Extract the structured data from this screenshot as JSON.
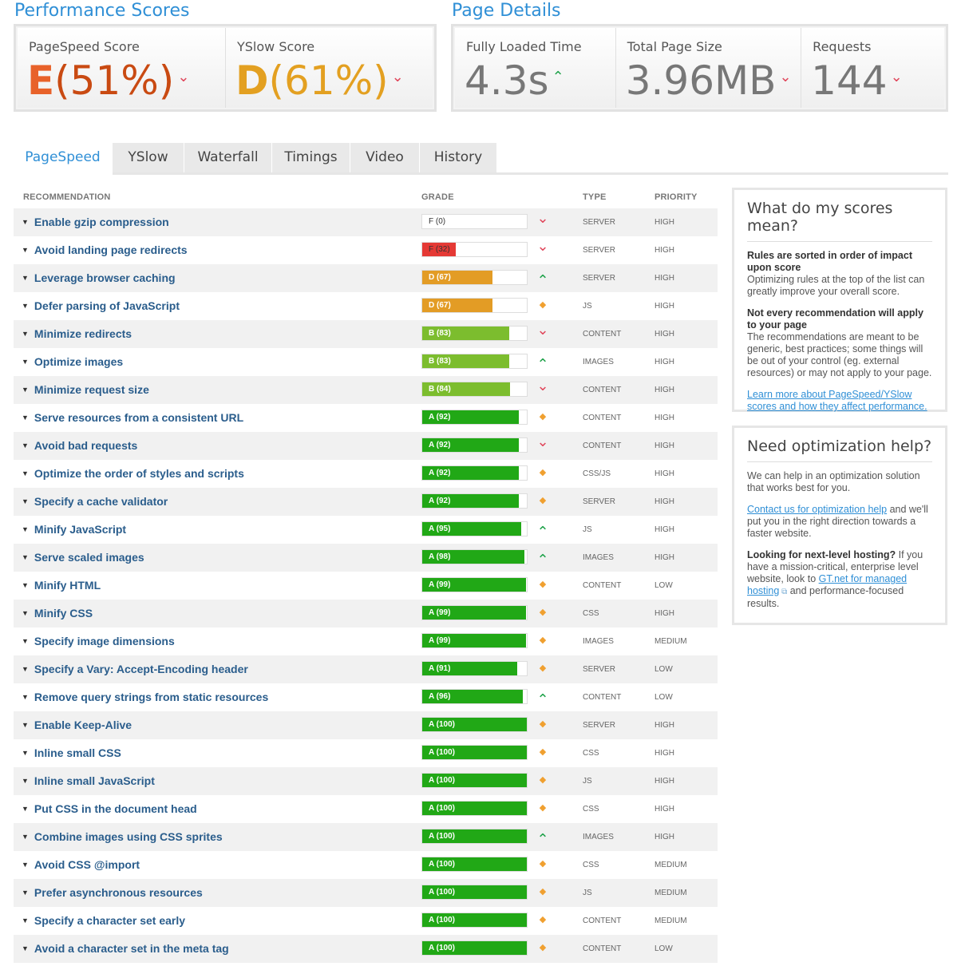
{
  "scores": {
    "title": "Performance Scores",
    "pagespeed": {
      "label": "PageSpeed Score",
      "grade": "E",
      "pct": "(51%)",
      "color": "#c94a12"
    },
    "yslow": {
      "label": "YSlow Score",
      "grade": "D",
      "pct": "(61%)",
      "color": "#e3a021"
    }
  },
  "details": {
    "title": "Page Details",
    "loaded": {
      "label": "Fully Loaded Time",
      "value": "4.3s",
      "trend": "up"
    },
    "size": {
      "label": "Total Page Size",
      "value": "3.96MB",
      "trend": "down"
    },
    "requests": {
      "label": "Requests",
      "value": "144",
      "trend": "down"
    }
  },
  "tabs": [
    "PageSpeed",
    "YSlow",
    "Waterfall",
    "Timings",
    "Video",
    "History"
  ],
  "active_tab": "PageSpeed",
  "table": {
    "headers": {
      "rec": "RECOMMENDATION",
      "grade": "GRADE",
      "type": "TYPE",
      "priority": "PRIORITY"
    },
    "rows": [
      {
        "name": "Enable gzip compression",
        "grade": "F (0)",
        "score": 0,
        "trend": "down",
        "type": "SERVER",
        "priority": "HIGH"
      },
      {
        "name": "Avoid landing page redirects",
        "grade": "F (32)",
        "score": 32,
        "trend": "down",
        "type": "SERVER",
        "priority": "HIGH"
      },
      {
        "name": "Leverage browser caching",
        "grade": "D (67)",
        "score": 67,
        "trend": "up",
        "type": "SERVER",
        "priority": "HIGH"
      },
      {
        "name": "Defer parsing of JavaScript",
        "grade": "D (67)",
        "score": 67,
        "trend": "neutral",
        "type": "JS",
        "priority": "HIGH"
      },
      {
        "name": "Minimize redirects",
        "grade": "B (83)",
        "score": 83,
        "trend": "down",
        "type": "CONTENT",
        "priority": "HIGH"
      },
      {
        "name": "Optimize images",
        "grade": "B (83)",
        "score": 83,
        "trend": "up",
        "type": "IMAGES",
        "priority": "HIGH"
      },
      {
        "name": "Minimize request size",
        "grade": "B (84)",
        "score": 84,
        "trend": "down",
        "type": "CONTENT",
        "priority": "HIGH"
      },
      {
        "name": "Serve resources from a consistent URL",
        "grade": "A (92)",
        "score": 92,
        "trend": "neutral",
        "type": "CONTENT",
        "priority": "HIGH"
      },
      {
        "name": "Avoid bad requests",
        "grade": "A (92)",
        "score": 92,
        "trend": "down",
        "type": "CONTENT",
        "priority": "HIGH"
      },
      {
        "name": "Optimize the order of styles and scripts",
        "grade": "A (92)",
        "score": 92,
        "trend": "neutral",
        "type": "CSS/JS",
        "priority": "HIGH"
      },
      {
        "name": "Specify a cache validator",
        "grade": "A (92)",
        "score": 92,
        "trend": "neutral",
        "type": "SERVER",
        "priority": "HIGH"
      },
      {
        "name": "Minify JavaScript",
        "grade": "A (95)",
        "score": 95,
        "trend": "up",
        "type": "JS",
        "priority": "HIGH"
      },
      {
        "name": "Serve scaled images",
        "grade": "A (98)",
        "score": 98,
        "trend": "up",
        "type": "IMAGES",
        "priority": "HIGH"
      },
      {
        "name": "Minify HTML",
        "grade": "A (99)",
        "score": 99,
        "trend": "neutral",
        "type": "CONTENT",
        "priority": "LOW"
      },
      {
        "name": "Minify CSS",
        "grade": "A (99)",
        "score": 99,
        "trend": "neutral",
        "type": "CSS",
        "priority": "HIGH"
      },
      {
        "name": "Specify image dimensions",
        "grade": "A (99)",
        "score": 99,
        "trend": "neutral",
        "type": "IMAGES",
        "priority": "MEDIUM"
      },
      {
        "name": "Specify a Vary: Accept-Encoding header",
        "grade": "A (91)",
        "score": 91,
        "trend": "neutral",
        "type": "SERVER",
        "priority": "LOW"
      },
      {
        "name": "Remove query strings from static resources",
        "grade": "A (96)",
        "score": 96,
        "trend": "up",
        "type": "CONTENT",
        "priority": "LOW"
      },
      {
        "name": "Enable Keep-Alive",
        "grade": "A (100)",
        "score": 100,
        "trend": "neutral",
        "type": "SERVER",
        "priority": "HIGH"
      },
      {
        "name": "Inline small CSS",
        "grade": "A (100)",
        "score": 100,
        "trend": "neutral",
        "type": "CSS",
        "priority": "HIGH"
      },
      {
        "name": "Inline small JavaScript",
        "grade": "A (100)",
        "score": 100,
        "trend": "neutral",
        "type": "JS",
        "priority": "HIGH"
      },
      {
        "name": "Put CSS in the document head",
        "grade": "A (100)",
        "score": 100,
        "trend": "neutral",
        "type": "CSS",
        "priority": "HIGH"
      },
      {
        "name": "Combine images using CSS sprites",
        "grade": "A (100)",
        "score": 100,
        "trend": "up",
        "type": "IMAGES",
        "priority": "HIGH"
      },
      {
        "name": "Avoid CSS @import",
        "grade": "A (100)",
        "score": 100,
        "trend": "neutral",
        "type": "CSS",
        "priority": "MEDIUM"
      },
      {
        "name": "Prefer asynchronous resources",
        "grade": "A (100)",
        "score": 100,
        "trend": "neutral",
        "type": "JS",
        "priority": "MEDIUM"
      },
      {
        "name": "Specify a character set early",
        "grade": "A (100)",
        "score": 100,
        "trend": "neutral",
        "type": "CONTENT",
        "priority": "MEDIUM"
      },
      {
        "name": "Avoid a character set in the meta tag",
        "grade": "A (100)",
        "score": 100,
        "trend": "neutral",
        "type": "CONTENT",
        "priority": "LOW"
      }
    ]
  },
  "grade_colors": {
    "A": "#21a816",
    "B": "#7cbd2e",
    "D": "#e39c25",
    "F": "#e53935"
  },
  "scores_box": {
    "title": "What do my scores mean?",
    "p1_bold": "Rules are sorted in order of impact upon score",
    "p1": "Optimizing rules at the top of the list can greatly improve your overall score.",
    "p2_bold": "Not every recommendation will apply to your page",
    "p2": "The recommendations are meant to be generic, best practices; some things will be out of your control (eg. external resources) or may not apply to your page.",
    "link": "Learn more about PageSpeed/YSlow scores and how they affect performance."
  },
  "help_box": {
    "title": "Need optimization help?",
    "p1": "We can help in an optimization solution that works best for you.",
    "p2_link": "Contact us for optimization help",
    "p2_rest": " and we'll put you in the right direction towards a faster website.",
    "p3_bold": "Looking for next-level hosting?",
    "p3_a": " If you have a mission-critical, enterprise level website, look to ",
    "p3_link": "GT.net for managed hosting",
    "p3_b": " and performance-focused results."
  }
}
